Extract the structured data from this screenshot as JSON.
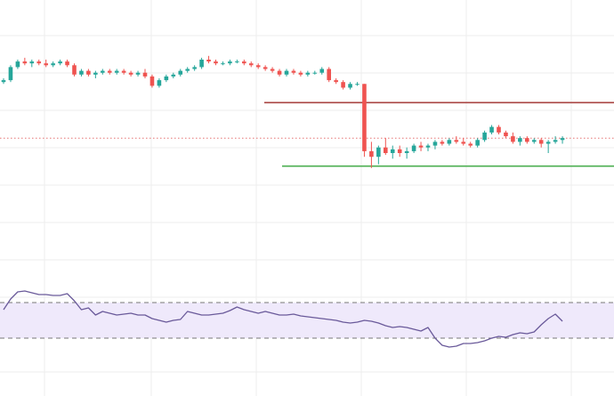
{
  "colors": {
    "background": "#ffffff",
    "grid": "#eeeeee",
    "up": "#26a69a",
    "down": "#ef5350",
    "resistance": "#a94442",
    "support": "#4caf50",
    "price_line": "#e57373",
    "rsi_line": "#6a5a9a",
    "rsi_band": "#efe9fb",
    "rsi_bound": "#777777"
  },
  "chart_data": [
    {
      "type": "candlestick",
      "title": "",
      "ylim": [
        0,
        100
      ],
      "current_price": 38,
      "resistance_level": 57,
      "support_level": 23,
      "grid": true,
      "series": [
        {
          "values": [
            [
              68,
              70,
              67,
              69
            ],
            [
              69,
              77,
              68,
              76
            ],
            [
              76,
              80,
              75,
              79
            ],
            [
              79,
              81,
              77,
              78
            ],
            [
              78,
              80,
              76,
              79
            ],
            [
              79,
              80,
              77,
              78
            ],
            [
              78,
              80,
              76,
              77
            ],
            [
              77,
              79,
              76,
              78
            ],
            [
              78,
              80,
              77,
              79
            ],
            [
              79,
              80,
              76,
              77
            ],
            [
              77,
              78,
              71,
              72
            ],
            [
              72,
              75,
              71,
              74
            ],
            [
              74,
              75,
              71,
              72
            ],
            [
              72,
              74,
              70,
              73
            ],
            [
              73,
              75,
              72,
              74
            ],
            [
              74,
              75,
              72,
              73
            ],
            [
              73,
              75,
              72,
              74
            ],
            [
              74,
              75,
              72,
              73
            ],
            [
              73,
              74,
              71,
              72
            ],
            [
              72,
              74,
              71,
              73
            ],
            [
              73,
              75,
              70,
              71
            ],
            [
              71,
              72,
              65,
              66
            ],
            [
              66,
              70,
              65,
              69
            ],
            [
              69,
              72,
              68,
              71
            ],
            [
              71,
              73,
              70,
              72
            ],
            [
              72,
              75,
              71,
              74
            ],
            [
              74,
              76,
              73,
              75
            ],
            [
              75,
              77,
              74,
              76
            ],
            [
              76,
              81,
              75,
              80
            ],
            [
              80,
              82,
              78,
              79
            ],
            [
              79,
              80,
              77,
              78
            ],
            [
              78,
              79,
              77,
              78
            ],
            [
              78,
              80,
              77,
              79
            ],
            [
              79,
              80,
              78,
              79
            ],
            [
              79,
              80,
              77,
              78
            ],
            [
              78,
              79,
              76,
              77
            ],
            [
              77,
              78,
              75,
              76
            ],
            [
              76,
              77,
              74,
              75
            ],
            [
              75,
              76,
              73,
              74
            ],
            [
              74,
              75,
              71,
              72
            ],
            [
              72,
              75,
              71,
              74
            ],
            [
              74,
              75,
              72,
              73
            ],
            [
              73,
              74,
              71,
              72
            ],
            [
              72,
              74,
              71,
              73
            ],
            [
              73,
              74,
              72,
              73
            ],
            [
              73,
              76,
              72,
              75
            ],
            [
              75,
              76,
              68,
              69
            ],
            [
              69,
              70,
              67,
              68
            ],
            [
              68,
              69,
              64,
              65
            ],
            [
              65,
              68,
              64,
              67
            ],
            [
              67,
              68,
              66,
              67
            ],
            [
              67,
              67,
              28,
              31
            ],
            [
              31,
              36,
              22,
              28
            ],
            [
              28,
              34,
              24,
              33
            ],
            [
              33,
              38,
              29,
              30
            ],
            [
              30,
              34,
              27,
              32
            ],
            [
              32,
              34,
              28,
              30
            ],
            [
              30,
              33,
              27,
              31
            ],
            [
              31,
              35,
              30,
              34
            ],
            [
              34,
              36,
              31,
              33
            ],
            [
              33,
              35,
              31,
              34
            ],
            [
              34,
              37,
              32,
              36
            ],
            [
              36,
              37,
              34,
              35
            ],
            [
              35,
              38,
              34,
              37
            ],
            [
              37,
              39,
              35,
              36
            ],
            [
              36,
              38,
              34,
              35
            ],
            [
              35,
              36,
              33,
              34
            ],
            [
              34,
              38,
              33,
              37
            ],
            [
              37,
              42,
              36,
              41
            ],
            [
              41,
              45,
              40,
              44
            ],
            [
              44,
              45,
              40,
              41
            ],
            [
              41,
              42,
              38,
              39
            ],
            [
              39,
              41,
              35,
              36
            ],
            [
              36,
              39,
              34,
              38
            ],
            [
              38,
              39,
              35,
              36
            ],
            [
              36,
              38,
              35,
              37
            ],
            [
              37,
              38,
              33,
              35
            ],
            [
              35,
              37,
              30,
              36
            ],
            [
              36,
              39,
              35,
              37
            ],
            [
              37,
              39,
              35,
              38
            ]
          ]
        }
      ]
    },
    {
      "type": "line",
      "title": "",
      "ylim": [
        0,
        100
      ],
      "bounds": [
        70,
        30
      ],
      "series": [
        {
          "values": [
            62,
            74,
            82,
            83,
            81,
            79,
            79,
            78,
            78,
            80,
            72,
            62,
            64,
            56,
            60,
            58,
            56,
            57,
            58,
            56,
            56,
            52,
            50,
            48,
            50,
            51,
            60,
            58,
            56,
            56,
            57,
            58,
            61,
            65,
            62,
            60,
            58,
            60,
            58,
            56,
            56,
            57,
            55,
            54,
            53,
            52,
            51,
            50,
            48,
            47,
            48,
            50,
            49,
            47,
            44,
            42,
            43,
            42,
            40,
            38,
            42,
            30,
            22,
            20,
            21,
            24,
            24,
            25,
            27,
            30,
            32,
            31,
            34,
            36,
            35,
            37,
            45,
            52,
            57,
            49
          ]
        }
      ]
    }
  ]
}
